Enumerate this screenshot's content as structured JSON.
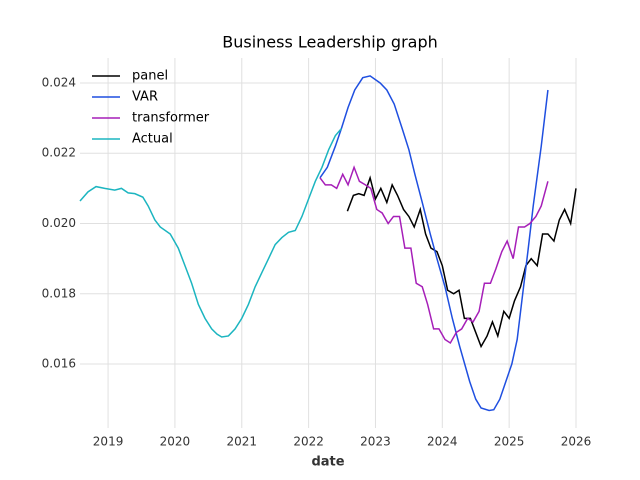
{
  "chart_data": {
    "type": "line",
    "title": "Business Leadership graph",
    "xlabel": "date",
    "xlim": [
      2018.58,
      2026
    ],
    "xticks": [
      2019,
      2020,
      2021,
      2022,
      2023,
      2024,
      2025,
      2026
    ],
    "ylim": [
      0.01418,
      0.02471
    ],
    "yticks": [
      0.016,
      0.018,
      {
        "value": 0.02,
        "label": "0.020"
      },
      0.022,
      0.024
    ],
    "grid": true,
    "legend": "upper-left",
    "series": [
      {
        "name": "panel",
        "color": "#000000",
        "x": [
          2022.58,
          2022.67,
          2022.75,
          2022.83,
          2022.92,
          2023.0,
          2023.08,
          2023.17,
          2023.25,
          2023.33,
          2023.42,
          2023.5,
          2023.58,
          2023.67,
          2023.75,
          2023.83,
          2023.92,
          2024.0,
          2024.08,
          2024.17,
          2024.25,
          2024.33,
          2024.42,
          2024.5,
          2024.58,
          2024.67,
          2024.75,
          2024.83,
          2024.92,
          2025.0,
          2025.08,
          2025.17,
          2025.25,
          2025.33,
          2025.42,
          2025.5,
          2025.58,
          2025.67,
          2025.75,
          2025.83,
          2025.92,
          2026.0
        ],
        "values": [
          0.02035,
          0.0208,
          0.02085,
          0.0208,
          0.0213,
          0.0207,
          0.021,
          0.0206,
          0.0211,
          0.0208,
          0.0204,
          0.0202,
          0.0199,
          0.0204,
          0.0197,
          0.0193,
          0.0192,
          0.0188,
          0.0181,
          0.018,
          0.0181,
          0.0173,
          0.0173,
          0.0169,
          0.0165,
          0.0168,
          0.0172,
          0.0168,
          0.0175,
          0.0173,
          0.0178,
          0.0182,
          0.0188,
          0.019,
          0.0188,
          0.0197,
          0.0197,
          0.0195,
          0.0201,
          0.0204,
          0.02,
          0.021
        ]
      },
      {
        "name": "VAR",
        "color": "#1f4fe0",
        "x": [
          2022.17,
          2022.28,
          2022.4,
          2022.49,
          2022.59,
          2022.69,
          2022.81,
          2022.92,
          2023.07,
          2023.17,
          2023.28,
          2023.4,
          2023.5,
          2023.59,
          2023.7,
          2023.82,
          2023.92,
          2024.04,
          2024.15,
          2024.26,
          2024.41,
          2024.5,
          2024.58,
          2024.7,
          2024.77,
          2024.86,
          2024.95,
          2025.04,
          2025.12,
          2025.19,
          2025.28,
          2025.36,
          2025.48,
          2025.58
        ],
        "values": [
          0.0213,
          0.0216,
          0.0222,
          0.0227,
          0.0233,
          0.0238,
          0.02415,
          0.0242,
          0.024,
          0.0238,
          0.0234,
          0.0227,
          0.0221,
          0.0214,
          0.0206,
          0.0197,
          0.019,
          0.0182,
          0.0173,
          0.0165,
          0.0155,
          0.015,
          0.01475,
          0.01468,
          0.0147,
          0.015,
          0.0155,
          0.016,
          0.0167,
          0.0178,
          0.0192,
          0.0205,
          0.0222,
          0.0238
        ]
      },
      {
        "name": "transformer",
        "color": "#a61fb8",
        "x": [
          2022.17,
          2022.25,
          2022.34,
          2022.42,
          2022.51,
          2022.59,
          2022.68,
          2022.76,
          2022.85,
          2022.93,
          2023.02,
          2023.1,
          2023.19,
          2023.27,
          2023.36,
          2023.44,
          2023.53,
          2023.61,
          2023.7,
          2023.78,
          2023.87,
          2023.95,
          2024.04,
          2024.12,
          2024.21,
          2024.29,
          2024.38,
          2024.46,
          2024.55,
          2024.63,
          2024.72,
          2024.8,
          2024.89,
          2024.97,
          2025.06,
          2025.14,
          2025.23,
          2025.31,
          2025.4,
          2025.48,
          2025.58
        ],
        "values": [
          0.0213,
          0.0211,
          0.0211,
          0.021,
          0.0214,
          0.0211,
          0.0216,
          0.0212,
          0.0211,
          0.021,
          0.0204,
          0.0203,
          0.02,
          0.0202,
          0.0202,
          0.0193,
          0.0193,
          0.0183,
          0.0182,
          0.0177,
          0.017,
          0.017,
          0.0167,
          0.0166,
          0.0169,
          0.017,
          0.0173,
          0.0172,
          0.0175,
          0.0183,
          0.0183,
          0.0187,
          0.0192,
          0.0195,
          0.019,
          0.0199,
          0.0199,
          0.02,
          0.0202,
          0.0205,
          0.0212
        ]
      },
      {
        "name": "Actual",
        "color": "#1cb5c0",
        "x": [
          2018.58,
          2018.7,
          2018.82,
          2018.95,
          2019.1,
          2019.2,
          2019.3,
          2019.4,
          2019.52,
          2019.6,
          2019.7,
          2019.78,
          2019.93,
          2020.05,
          2020.15,
          2020.25,
          2020.35,
          2020.45,
          2020.55,
          2020.63,
          2020.7,
          2020.8,
          2020.9,
          2021.0,
          2021.1,
          2021.2,
          2021.3,
          2021.4,
          2021.5,
          2021.6,
          2021.7,
          2021.8,
          2021.9,
          2022.0,
          2022.1,
          2022.2,
          2022.3,
          2022.4,
          2022.49
        ],
        "values": [
          0.02064,
          0.0209,
          0.02105,
          0.021,
          0.02095,
          0.021,
          0.02087,
          0.02085,
          0.02075,
          0.0205,
          0.0201,
          0.0199,
          0.0197,
          0.0193,
          0.0188,
          0.0183,
          0.0177,
          0.0173,
          0.017,
          0.01685,
          0.01677,
          0.0168,
          0.017,
          0.0173,
          0.0177,
          0.0182,
          0.0186,
          0.019,
          0.0194,
          0.0196,
          0.01975,
          0.0198,
          0.0202,
          0.0207,
          0.0212,
          0.0216,
          0.0221,
          0.0225,
          0.0227
        ]
      }
    ]
  }
}
